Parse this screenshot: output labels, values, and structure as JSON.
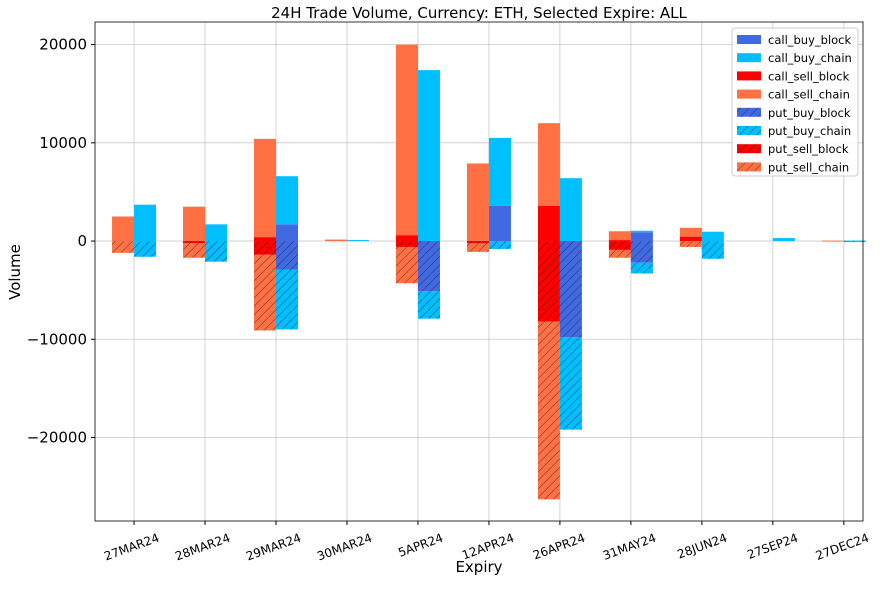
{
  "chart_data": {
    "type": "bar",
    "stacked": true,
    "title": "24H Trade Volume, Currency: ETH, Selected Expire: ALL",
    "xlabel": "Expiry",
    "ylabel": "Volume",
    "ylim": [
      -28500,
      22300
    ],
    "yticks": [
      20000,
      10000,
      0,
      -10000,
      -20000
    ],
    "ytick_labels": [
      "20000",
      "10000",
      "0",
      "−10000",
      "−20000"
    ],
    "grid": true,
    "legend_position": "top-right",
    "categories": [
      "27MAR24",
      "28MAR24",
      "29MAR24",
      "30MAR24",
      "5APR24",
      "12APR24",
      "26APR24",
      "31MAY24",
      "28JUN24",
      "27SEP24",
      "27DEC24"
    ],
    "series": [
      {
        "name": "call_buy_block",
        "side": "buy",
        "color": "#4169E1",
        "hatch": false,
        "values": [
          0,
          0,
          1700,
          0,
          0,
          3600,
          0,
          900,
          0,
          0,
          0
        ]
      },
      {
        "name": "call_buy_chain",
        "side": "buy",
        "color": "#00BFFF",
        "hatch": false,
        "values": [
          3700,
          1700,
          4900,
          100,
          17400,
          6900,
          6400,
          150,
          950,
          300,
          50
        ]
      },
      {
        "name": "call_sell_block",
        "side": "sell",
        "color": "#FF0000",
        "hatch": false,
        "values": [
          0,
          0,
          400,
          0,
          600,
          0,
          3600,
          100,
          450,
          0,
          0
        ]
      },
      {
        "name": "call_sell_chain",
        "side": "sell",
        "color": "#FF7043",
        "hatch": false,
        "values": [
          2500,
          3500,
          10000,
          150,
          19400,
          7900,
          8400,
          900,
          900,
          0,
          50
        ]
      },
      {
        "name": "put_buy_block",
        "side": "buy",
        "color": "#4169E1",
        "hatch": true,
        "values": [
          0,
          0,
          -2900,
          0,
          -5100,
          0,
          -9800,
          -2200,
          0,
          0,
          0
        ]
      },
      {
        "name": "put_buy_chain",
        "side": "buy",
        "color": "#00BFFF",
        "hatch": true,
        "values": [
          -1600,
          -2100,
          -6100,
          0,
          -2800,
          -800,
          -9400,
          -1100,
          -1800,
          0,
          -30
        ]
      },
      {
        "name": "put_sell_block",
        "side": "sell",
        "color": "#FF0000",
        "hatch": true,
        "values": [
          0,
          -200,
          -1400,
          0,
          -600,
          -200,
          -8200,
          -900,
          0,
          0,
          0
        ]
      },
      {
        "name": "put_sell_chain",
        "side": "sell",
        "color": "#FF7043",
        "hatch": true,
        "values": [
          -1200,
          -1500,
          -7700,
          0,
          -3700,
          -900,
          -18100,
          -800,
          -600,
          0,
          0
        ]
      }
    ]
  }
}
